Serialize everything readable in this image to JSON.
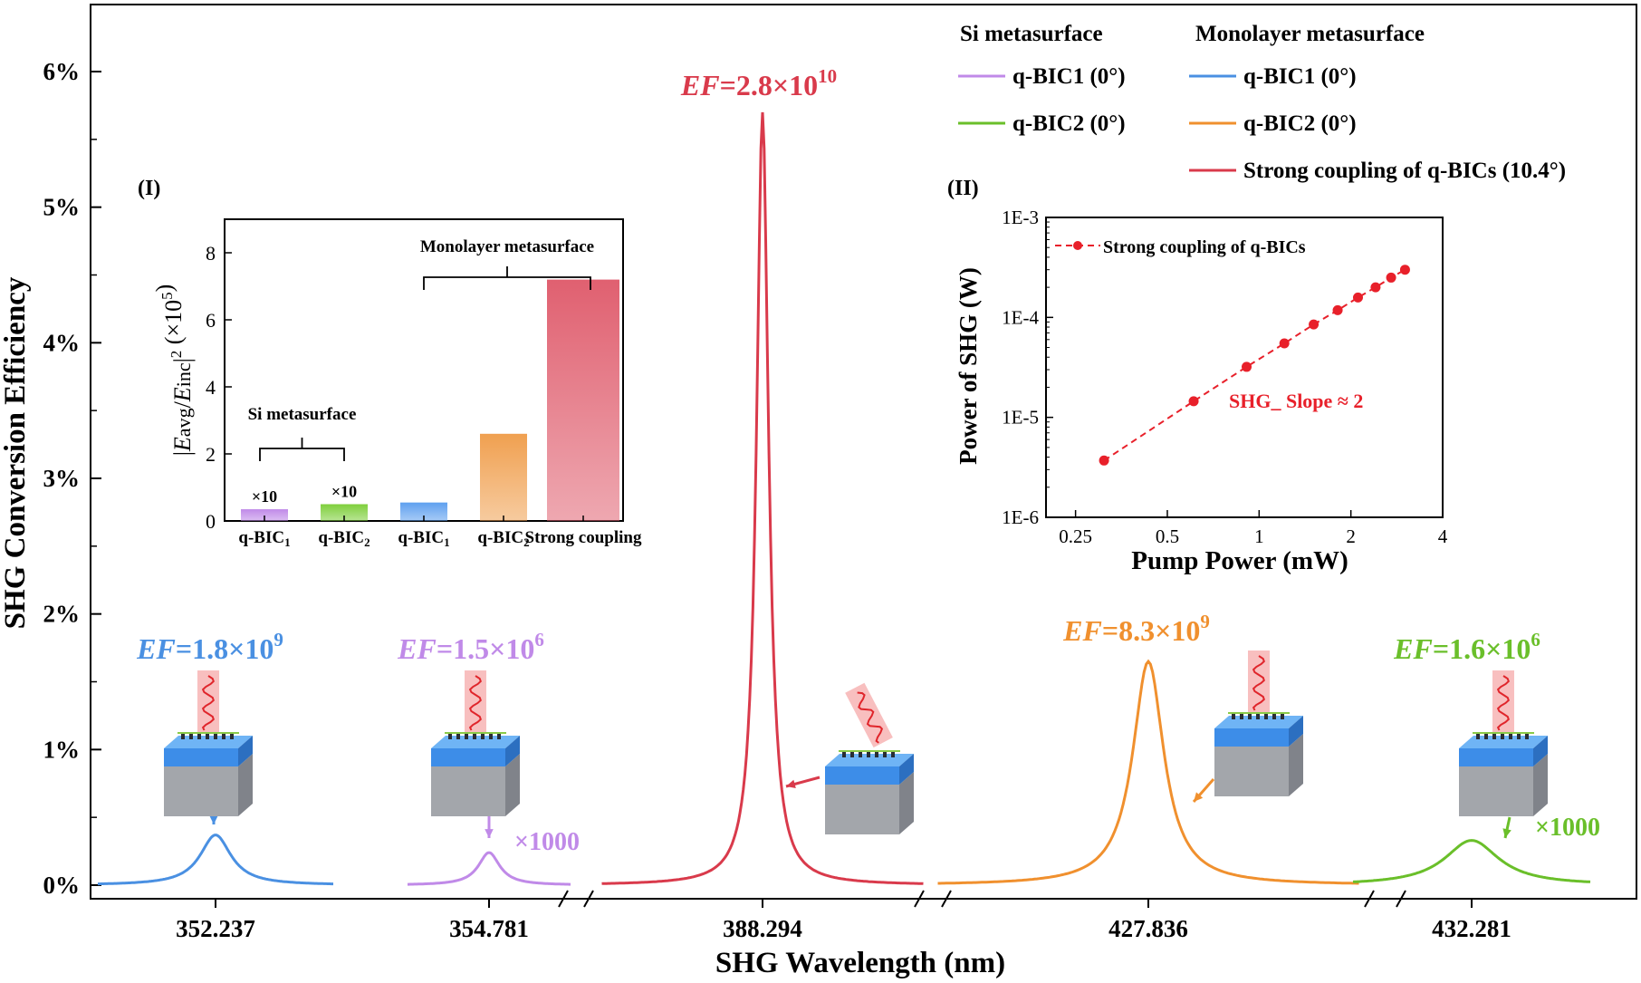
{
  "chart_data": [
    {
      "type": "line",
      "xlabel": "SHG Wavelength (nm)",
      "ylabel": "SHG Conversion Efficiency",
      "ylim": [
        0,
        6.5
      ],
      "yticks": [
        "0%",
        "1%",
        "2%",
        "3%",
        "4%",
        "5%",
        "6%"
      ],
      "segments": [
        {
          "tick": "352.237",
          "mode": "q-BIC1 (0°)",
          "platform": "Monolayer metasurface",
          "color": "#4a90e2",
          "peak": 0.37,
          "width": 0.16,
          "ef": "1.8×10",
          "ef_exp": "9",
          "factor": ""
        },
        {
          "tick": "354.781",
          "mode": "q-BIC1 (0°)",
          "platform": "Si metasurface",
          "color": "#c08ae8",
          "peak": 0.24,
          "width": 0.16,
          "ef": "1.5×10",
          "ef_exp": "6",
          "factor": "×1000"
        },
        {
          "tick": "388.294",
          "mode": "Strong coupling of q-BICs (10.4°)",
          "platform": "Monolayer metasurface",
          "color": "#d93a4b",
          "peak": 5.7,
          "width": 0.045,
          "ef": "2.8×10",
          "ef_exp": "10",
          "factor": ""
        },
        {
          "tick": "427.836",
          "mode": "q-BIC2 (0°)",
          "platform": "Monolayer metasurface",
          "color": "#f0902e",
          "peak": 1.65,
          "width": 0.09,
          "ef": "8.3×10",
          "ef_exp": "9",
          "factor": ""
        },
        {
          "tick": "432.281",
          "mode": "q-BIC2 (0°)",
          "platform": "Si metasurface",
          "color": "#6abf2a",
          "peak": 0.33,
          "width": 0.28,
          "ef": "1.6×10",
          "ef_exp": "6",
          "factor": "×1000"
        }
      ],
      "legend": {
        "groups": [
          "Si metasurface",
          "Monolayer metasurface"
        ],
        "si": [
          {
            "label": "q-BIC",
            "sub": "1",
            "tail": " (0°)",
            "color": "#c08ae8"
          },
          {
            "label": "q-BIC",
            "sub": "2",
            "tail": " (0°)",
            "color": "#6abf2a"
          }
        ],
        "mono": [
          {
            "label": "q-BIC",
            "sub": "1",
            "tail": " (0°)",
            "color": "#4a90e2"
          },
          {
            "label": "q-BIC",
            "sub": "2",
            "tail": " (0°)",
            "color": "#f0902e"
          },
          {
            "label": "Strong coupling  of q-BICs (10.4°)",
            "sub": "",
            "tail": "",
            "color": "#d93a4b"
          }
        ]
      },
      "ef_prefix": "EF"
    },
    {
      "type": "bar",
      "panel_label": "(I)",
      "ylabel": "|Eavg/Einc|² (×10⁵)",
      "ylim": [
        0,
        9
      ],
      "yticks": [
        "0",
        "2",
        "4",
        "6",
        "8"
      ],
      "categories": [
        "q-BIC1",
        "q-BIC2",
        "q-BIC1",
        "q-BIC2",
        "Strong coupling"
      ],
      "category_base": [
        "q-BIC",
        "q-BIC",
        "q-BIC",
        "q-BIC",
        "Strong coupling"
      ],
      "category_sub": [
        "1",
        "2",
        "1",
        "2",
        ""
      ],
      "values": [
        0.35,
        0.5,
        0.55,
        2.6,
        7.2
      ],
      "colors": [
        "#c08ae8",
        "#7fcf3c",
        "#5fa0ef",
        "#f0a050",
        "#e06070"
      ],
      "bar_labels": [
        "×10",
        "×10",
        "",
        "",
        ""
      ],
      "groups": [
        {
          "label": "Si metasurface",
          "from": 0,
          "to": 1
        },
        {
          "label": "Monolayer metasurface",
          "from": 2,
          "to": 4
        }
      ]
    },
    {
      "type": "scatter",
      "panel_label": "(II)",
      "xscale": "log",
      "yscale": "log",
      "xlabel": "Pump Power (mW)",
      "ylabel": "Power of SHG (W)",
      "xlim": [
        0.2,
        4
      ],
      "ylim": [
        1e-06,
        0.001
      ],
      "xticks": [
        "0.25",
        "0.5",
        "1",
        "2",
        "4"
      ],
      "xtick_values": [
        0.25,
        0.5,
        1,
        2,
        4
      ],
      "yticks": [
        "1E-6",
        "1E-5",
        "1E-4",
        "1E-3"
      ],
      "ytick_values": [
        1e-06,
        1e-05,
        0.0001,
        0.001
      ],
      "series": [
        {
          "name": "Strong coupling of q-BICs",
          "color": "#e8202a",
          "x": [
            0.31,
            0.61,
            0.91,
            1.21,
            1.51,
            1.81,
            2.11,
            2.41,
            2.71,
            3.01
          ],
          "y": [
            3.7e-06,
            1.45e-05,
            3.2e-05,
            5.5e-05,
            8.5e-05,
            0.000118,
            0.000158,
            0.0002,
            0.00025,
            0.0003
          ]
        }
      ],
      "annotation": "SHG_ Slope ≈ 2"
    }
  ]
}
